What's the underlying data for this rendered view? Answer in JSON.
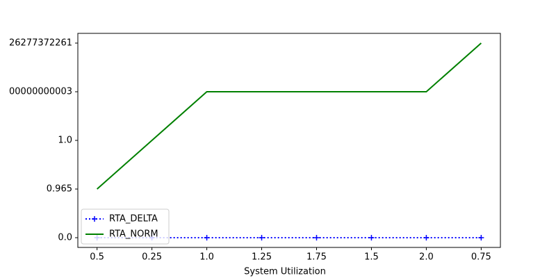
{
  "chart_data": {
    "type": "line",
    "xlabel": "System Utilization",
    "categories": [
      "0.5",
      "0.25",
      "1.0",
      "1.25",
      "1.75",
      "1.5",
      "2.0",
      "0.75"
    ],
    "ylim": [
      -0.2,
      4.2
    ],
    "yticks": [
      {
        "value": 0,
        "label": "0.0"
      },
      {
        "value": 1,
        "label": "0.965"
      },
      {
        "value": 2,
        "label": "1.0"
      },
      {
        "value": 3,
        "label": "00000000003"
      },
      {
        "value": 4,
        "label": "26277372261"
      }
    ],
    "series": [
      {
        "name": "RTA_DELTA",
        "color": "#0000ff",
        "style": "dotted",
        "marker": "+",
        "values": [
          0,
          0,
          0,
          0,
          0,
          0,
          0,
          0
        ]
      },
      {
        "name": "RTA_NORM",
        "color": "#008000",
        "style": "solid",
        "values": [
          1,
          2,
          3,
          3,
          3,
          3,
          3,
          4
        ]
      }
    ],
    "legend": "lower left"
  }
}
